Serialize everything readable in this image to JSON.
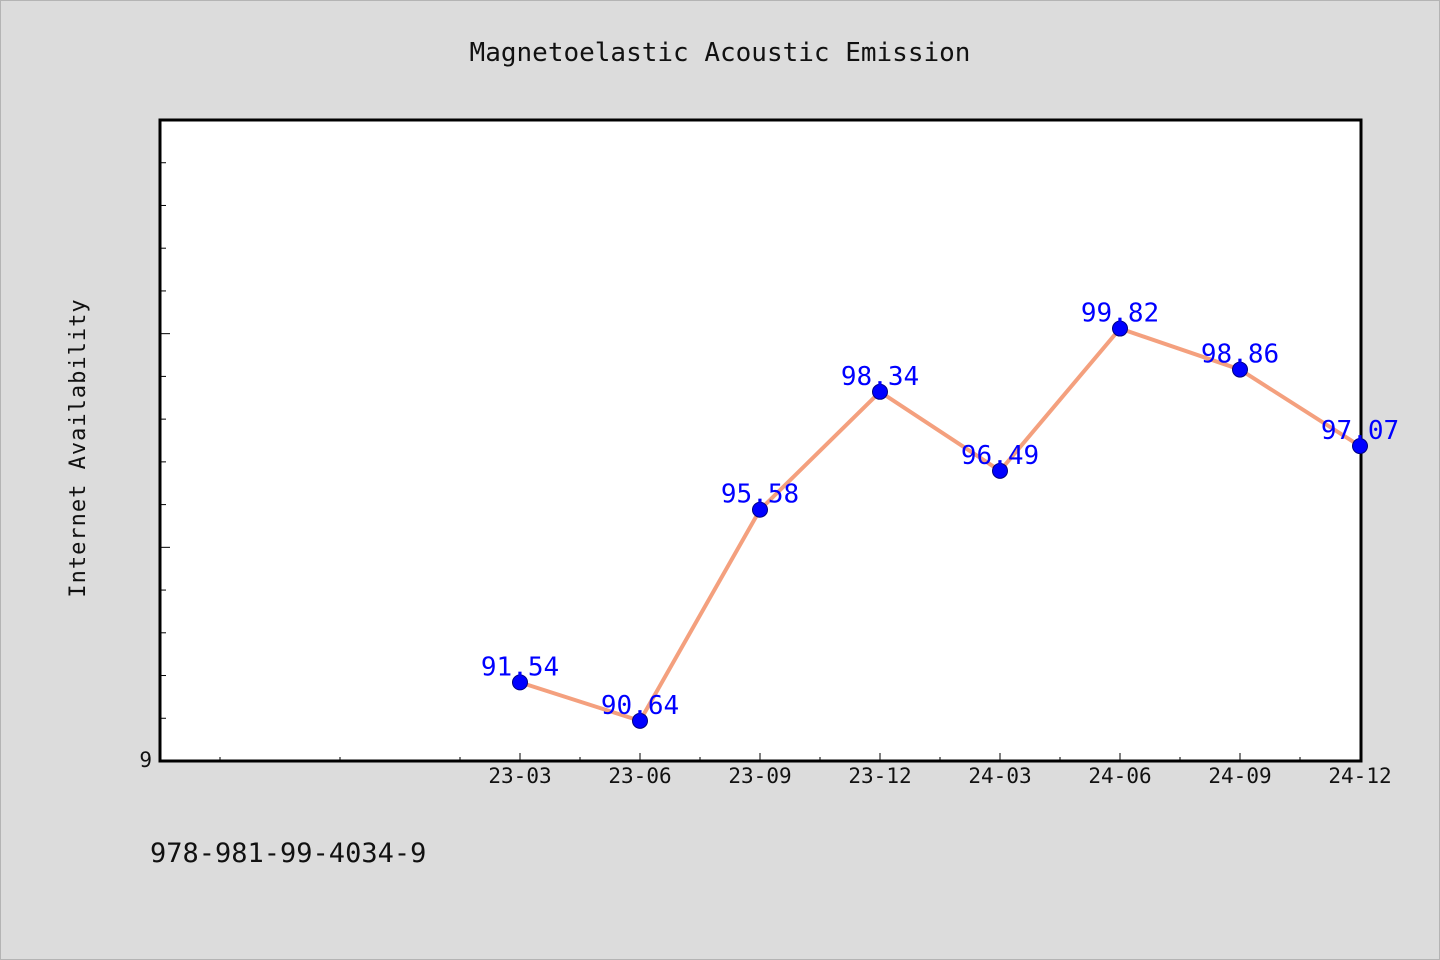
{
  "chart_data": {
    "type": "line",
    "title": "Magnetoelastic Acoustic Emission",
    "xlabel": "",
    "ylabel": "Internet Availability",
    "categories": [
      "23-03",
      "23-06",
      "23-09",
      "23-12",
      "24-03",
      "24-06",
      "24-09",
      "24-12"
    ],
    "values": [
      91.54,
      90.64,
      95.58,
      98.34,
      96.49,
      99.82,
      98.86,
      97.07
    ],
    "data_labels": [
      "91.54",
      "90.64",
      "95.58",
      "98.34",
      "96.49",
      "99.82",
      "98.86",
      "97.07"
    ],
    "ylim": [
      89.7,
      104.7
    ],
    "y_tick_labels": [
      "9"
    ],
    "grid": false,
    "line_color": "#f4a07e",
    "marker_color": "#0000ff",
    "label_color": "#0000ff"
  },
  "footer_text": "978-981-99-4034-9"
}
